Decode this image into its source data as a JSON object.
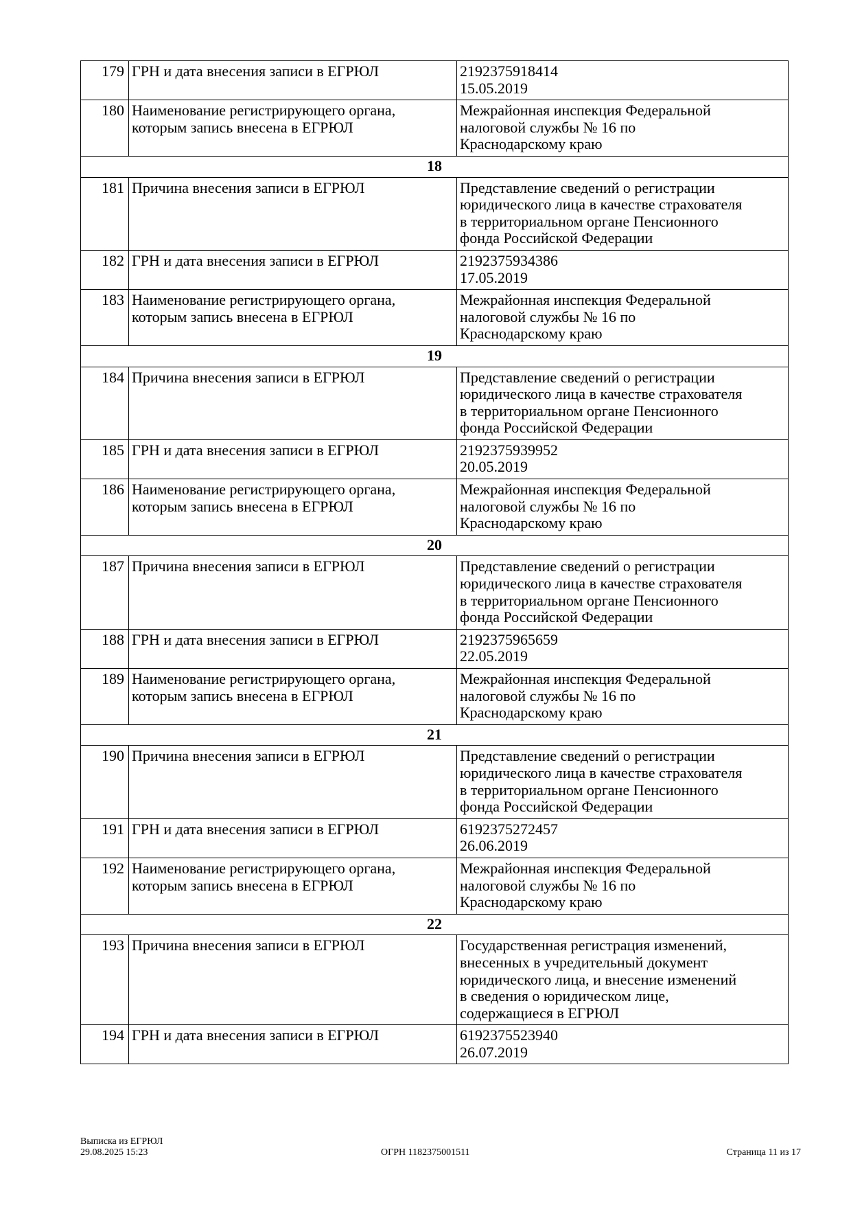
{
  "sections": [
    {
      "title": null,
      "rows": [
        {
          "num": "179",
          "label": [
            "ГРН и дата внесения записи в ЕГРЮЛ"
          ],
          "value": [
            "2192375918414",
            "15.05.2019"
          ]
        },
        {
          "num": "180",
          "label": [
            "Наименование регистрирующего органа,",
            "которым запись внесена в ЕГРЮЛ"
          ],
          "value": [
            "Межрайонная инспекция Федеральной",
            "налоговой службы № 16 по",
            "Краснодарскому краю"
          ]
        }
      ]
    },
    {
      "title": "18",
      "rows": [
        {
          "num": "181",
          "label": [
            "Причина внесения записи в ЕГРЮЛ"
          ],
          "value": [
            "Представление сведений о регистрации",
            "юридического лица в качестве страхователя",
            "в территориальном органе Пенсионного",
            "фонда Российской Федерации"
          ]
        },
        {
          "num": "182",
          "label": [
            "ГРН и дата внесения записи в ЕГРЮЛ"
          ],
          "value": [
            "2192375934386",
            "17.05.2019"
          ]
        },
        {
          "num": "183",
          "label": [
            "Наименование регистрирующего органа,",
            "которым запись внесена в ЕГРЮЛ"
          ],
          "value": [
            "Межрайонная инспекция Федеральной",
            "налоговой службы № 16 по",
            "Краснодарскому краю"
          ]
        }
      ]
    },
    {
      "title": "19",
      "rows": [
        {
          "num": "184",
          "label": [
            "Причина внесения записи в ЕГРЮЛ"
          ],
          "value": [
            "Представление сведений о регистрации",
            "юридического лица в качестве страхователя",
            "в территориальном органе Пенсионного",
            "фонда Российской Федерации"
          ]
        },
        {
          "num": "185",
          "label": [
            "ГРН и дата внесения записи в ЕГРЮЛ"
          ],
          "value": [
            "2192375939952",
            "20.05.2019"
          ]
        },
        {
          "num": "186",
          "label": [
            "Наименование регистрирующего органа,",
            "которым запись внесена в ЕГРЮЛ"
          ],
          "value": [
            "Межрайонная инспекция Федеральной",
            "налоговой службы № 16 по",
            "Краснодарскому краю"
          ]
        }
      ]
    },
    {
      "title": "20",
      "rows": [
        {
          "num": "187",
          "label": [
            "Причина внесения записи в ЕГРЮЛ"
          ],
          "value": [
            "Представление сведений о регистрации",
            "юридического лица в качестве страхователя",
            "в территориальном органе Пенсионного",
            "фонда Российской Федерации"
          ]
        },
        {
          "num": "188",
          "label": [
            "ГРН и дата внесения записи в ЕГРЮЛ"
          ],
          "value": [
            "2192375965659",
            "22.05.2019"
          ]
        },
        {
          "num": "189",
          "label": [
            "Наименование регистрирующего органа,",
            "которым запись внесена в ЕГРЮЛ"
          ],
          "value": [
            "Межрайонная инспекция Федеральной",
            "налоговой службы № 16 по",
            "Краснодарскому краю"
          ]
        }
      ]
    },
    {
      "title": "21",
      "rows": [
        {
          "num": "190",
          "label": [
            "Причина внесения записи в ЕГРЮЛ"
          ],
          "value": [
            "Представление сведений о регистрации",
            "юридического лица в качестве страхователя",
            "в территориальном органе Пенсионного",
            "фонда Российской Федерации"
          ]
        },
        {
          "num": "191",
          "label": [
            "ГРН и дата внесения записи в ЕГРЮЛ"
          ],
          "value": [
            "6192375272457",
            "26.06.2019"
          ]
        },
        {
          "num": "192",
          "label": [
            "Наименование регистрирующего органа,",
            "которым запись внесена в ЕГРЮЛ"
          ],
          "value": [
            "Межрайонная инспекция Федеральной",
            "налоговой службы № 16 по",
            "Краснодарскому краю"
          ]
        }
      ]
    },
    {
      "title": "22",
      "rows": [
        {
          "num": "193",
          "label": [
            "Причина внесения записи в ЕГРЮЛ"
          ],
          "value": [
            "Государственная регистрация изменений,",
            "внесенных в учредительный документ",
            "юридического лица, и внесение изменений",
            "в сведения о юридическом лице,",
            "содержащиеся в ЕГРЮЛ"
          ]
        },
        {
          "num": "194",
          "label": [
            "ГРН и дата внесения записи в ЕГРЮЛ"
          ],
          "value": [
            "6192375523940",
            "26.07.2019"
          ]
        }
      ]
    }
  ],
  "footer": {
    "doc_title": "Выписка из ЕГРЮЛ",
    "datetime": "29.08.2025 15:23",
    "ogrn": "ОГРН 1182375001511",
    "page": "Страница 11 из 17"
  }
}
